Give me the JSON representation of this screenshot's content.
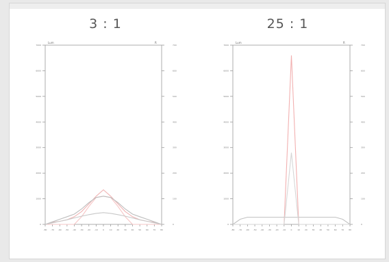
{
  "chart_data": [
    {
      "type": "line",
      "title": "3 : 1",
      "top_left_label": "Lum",
      "top_right_label": "R",
      "x": [
        -80,
        -70,
        -60,
        -50,
        -40,
        -30,
        -20,
        -10,
        0,
        10,
        20,
        30,
        40,
        50,
        60,
        70,
        80
      ],
      "xlim": [
        -80,
        80
      ],
      "ylim": [
        0,
        7000
      ],
      "y_ticks": [
        0,
        1000,
        2000,
        3000,
        4000,
        5000,
        6000,
        7000
      ],
      "right_ticks": [
        0,
        100,
        200,
        300,
        400,
        500,
        600,
        700
      ],
      "series": [
        {
          "color": "#f0b4b4",
          "values": [
            0,
            80,
            120,
            180,
            300,
            500,
            800,
            1100,
            1350,
            1100,
            800,
            500,
            300,
            180,
            120,
            80,
            0
          ]
        },
        {
          "color": "#f6c4c4",
          "values": [
            0,
            0,
            0,
            0,
            0,
            300,
            700,
            1050,
            1100,
            1050,
            700,
            300,
            0,
            0,
            0,
            0,
            0
          ]
        },
        {
          "color": "#bdbdbd",
          "values": [
            0,
            100,
            200,
            300,
            400,
            600,
            850,
            1050,
            1100,
            1050,
            850,
            600,
            400,
            300,
            200,
            100,
            0
          ]
        },
        {
          "color": "#c8c8c8",
          "values": [
            0,
            60,
            120,
            180,
            250,
            320,
            380,
            430,
            460,
            430,
            380,
            320,
            250,
            180,
            120,
            60,
            0
          ]
        }
      ]
    },
    {
      "type": "line",
      "title": "25 : 1",
      "top_left_label": "Lum",
      "top_right_label": "R",
      "x": [
        -80,
        -70,
        -60,
        -50,
        -40,
        -30,
        -20,
        -10,
        0,
        10,
        20,
        30,
        40,
        50,
        60,
        70,
        80
      ],
      "xlim": [
        -80,
        80
      ],
      "ylim": [
        0,
        7000
      ],
      "y_ticks": [
        0,
        1000,
        2000,
        3000,
        4000,
        5000,
        6000,
        7000
      ],
      "right_ticks": [
        0,
        100,
        200,
        300,
        400,
        500,
        600,
        700
      ],
      "series": [
        {
          "color": "#f2b0b0",
          "values": [
            0,
            0,
            0,
            0,
            0,
            0,
            0,
            0,
            6600,
            0,
            0,
            0,
            0,
            0,
            0,
            0,
            0
          ]
        },
        {
          "color": "#c2c2c2",
          "values": [
            0,
            200,
            280,
            280,
            280,
            280,
            280,
            280,
            280,
            280,
            280,
            280,
            280,
            280,
            280,
            200,
            0
          ]
        },
        {
          "color": "#d6d6d6",
          "values": [
            0,
            0,
            0,
            0,
            0,
            0,
            0,
            0,
            2800,
            0,
            0,
            0,
            0,
            0,
            0,
            0,
            0
          ]
        }
      ]
    }
  ]
}
